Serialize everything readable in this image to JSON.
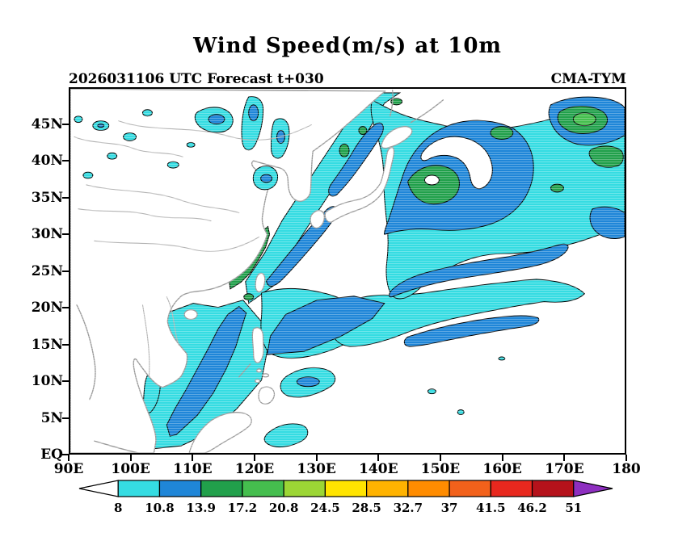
{
  "title": "Wind Speed(m/s) at 10m",
  "header": {
    "left": "2026031106 UTC Forecast t+030",
    "right": "CMA-TYM"
  },
  "chart_data": {
    "type": "heatmap",
    "title": "Wind Speed(m/s) at 10m",
    "forecast_label": "2026031106 UTC Forecast t+030",
    "model": "CMA-TYM",
    "variable": "Wind Speed",
    "unit": "m/s",
    "level": "10m",
    "x_axis": {
      "ticks": [
        "90E",
        "100E",
        "110E",
        "120E",
        "130E",
        "140E",
        "150E",
        "160E",
        "170E",
        "180"
      ],
      "range": [
        90,
        180
      ]
    },
    "y_axis": {
      "ticks": [
        "EQ",
        "5N",
        "10N",
        "15N",
        "20N",
        "25N",
        "30N",
        "35N",
        "40N",
        "45N"
      ],
      "range": [
        0,
        50
      ]
    },
    "colorbar": {
      "levels": [
        8,
        10.8,
        13.9,
        17.2,
        20.8,
        24.5,
        28.5,
        32.7,
        37,
        41.5,
        46.2,
        51
      ],
      "colors": [
        "#ffffff",
        "#35dce2",
        "#1f86d8",
        "#21a04b",
        "#45be4e",
        "#9cd635",
        "#ffe400",
        "#ffb300",
        "#ff8c00",
        "#f2611b",
        "#e8281e",
        "#b5121b",
        "#8e2fc0"
      ]
    },
    "features": [
      "Broad 8-13.9 m/s wind band from the South China Sea through the East China Sea into the Sea of Japan",
      "Blue 10.8-13.9 m/s core over the central South China Sea and Philippine Sea",
      "Cyclonic wind maximum with 13.9-20.8 m/s green core near 149E 38N east of Japan",
      "Green 13.9-20.8 m/s patches over the Taiwan Strait and the NW Pacific between 160E-180, 38N-47N",
      "Scattered light-wind patches over northern China, Mongolia and Korea",
      "Elongated 10.8-13.9 m/s bands near 16N and 24N across the western Pacific"
    ]
  }
}
